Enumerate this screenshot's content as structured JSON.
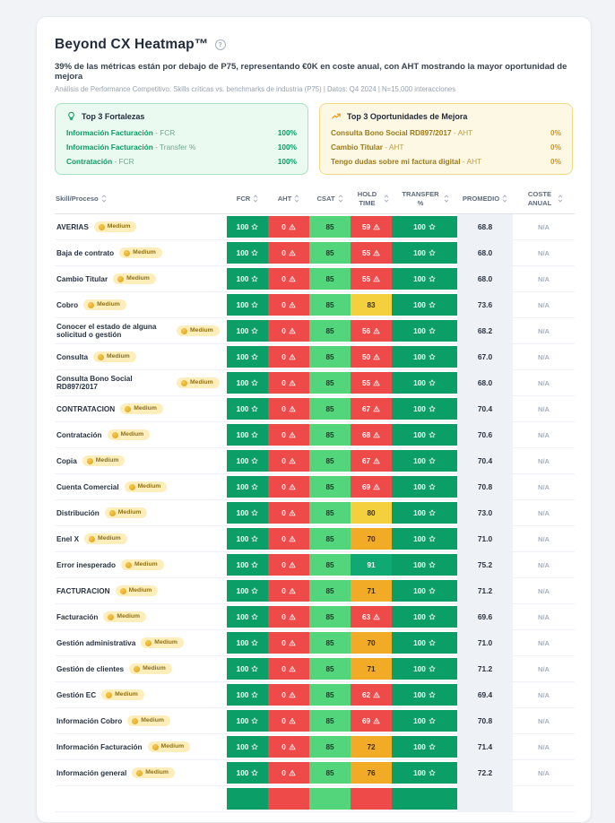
{
  "header": {
    "title": "Beyond CX Heatmap™",
    "subtitle": "39% de las métricas están por debajo de P75, representando €0K en coste anual, con AHT mostrando la mayor oportunidad de mejora",
    "meta": "Análisis de Performance Competitivo: Skills críticas vs. benchmarks de industria (P75) | Datos: Q4 2024 | N=15,000 interacciones",
    "help_glyph": "?"
  },
  "panels": {
    "strengths": {
      "title": "Top 3 Fortalezas",
      "items": [
        {
          "label": "Información Facturación",
          "metric": "FCR",
          "value": "100%"
        },
        {
          "label": "Información Facturación",
          "metric": "Transfer %",
          "value": "100%"
        },
        {
          "label": "Contratación",
          "metric": "FCR",
          "value": "100%"
        }
      ]
    },
    "opportunities": {
      "title": "Top 3 Oportunidades de Mejora",
      "items": [
        {
          "label": "Consulta Bono Social RD897/2017",
          "metric": "AHT",
          "value": "0%"
        },
        {
          "label": "Cambio Titular",
          "metric": "AHT",
          "value": "0%"
        },
        {
          "label": "Tengo dudas sobre mi factura digital",
          "metric": "AHT",
          "value": "0%"
        }
      ]
    }
  },
  "table": {
    "columns": [
      "Skill/Proceso",
      "FCR",
      "AHT",
      "CSAT",
      "HOLD TIME",
      "TRANSFER %",
      "PROMEDIO",
      "COSTE ANUAL"
    ],
    "rows": [
      {
        "skill": "AVERIAS",
        "badge": "Medium",
        "fcr": "100",
        "aht": "0",
        "csat": "85",
        "hold": "59",
        "hold_level": "bad",
        "transfer": "100",
        "promedio": "68.8",
        "coste": "N/A"
      },
      {
        "skill": "Baja de contrato",
        "badge": "Medium",
        "fcr": "100",
        "aht": "0",
        "csat": "85",
        "hold": "55",
        "hold_level": "bad",
        "transfer": "100",
        "promedio": "68.0",
        "coste": "N/A"
      },
      {
        "skill": "Cambio Titular",
        "badge": "Medium",
        "fcr": "100",
        "aht": "0",
        "csat": "85",
        "hold": "55",
        "hold_level": "bad",
        "transfer": "100",
        "promedio": "68.0",
        "coste": "N/A"
      },
      {
        "skill": "Cobro",
        "badge": "Medium",
        "fcr": "100",
        "aht": "0",
        "csat": "85",
        "hold": "83",
        "hold_level": "yellow",
        "transfer": "100",
        "promedio": "73.6",
        "coste": "N/A"
      },
      {
        "skill": "Conocer el estado de alguna solicitud o gestión",
        "badge": "Medium",
        "fcr": "100",
        "aht": "0",
        "csat": "85",
        "hold": "56",
        "hold_level": "bad",
        "transfer": "100",
        "promedio": "68.2",
        "coste": "N/A"
      },
      {
        "skill": "Consulta",
        "badge": "Medium",
        "fcr": "100",
        "aht": "0",
        "csat": "85",
        "hold": "50",
        "hold_level": "bad",
        "transfer": "100",
        "promedio": "67.0",
        "coste": "N/A"
      },
      {
        "skill": "Consulta Bono Social RD897/2017",
        "badge": "Medium",
        "fcr": "100",
        "aht": "0",
        "csat": "85",
        "hold": "55",
        "hold_level": "bad",
        "transfer": "100",
        "promedio": "68.0",
        "coste": "N/A"
      },
      {
        "skill": "CONTRATACION",
        "badge": "Medium",
        "fcr": "100",
        "aht": "0",
        "csat": "85",
        "hold": "67",
        "hold_level": "bad",
        "transfer": "100",
        "promedio": "70.4",
        "coste": "N/A"
      },
      {
        "skill": "Contratación",
        "badge": "Medium",
        "fcr": "100",
        "aht": "0",
        "csat": "85",
        "hold": "68",
        "hold_level": "bad",
        "transfer": "100",
        "promedio": "70.6",
        "coste": "N/A"
      },
      {
        "skill": "Copia",
        "badge": "Medium",
        "fcr": "100",
        "aht": "0",
        "csat": "85",
        "hold": "67",
        "hold_level": "bad",
        "transfer": "100",
        "promedio": "70.4",
        "coste": "N/A"
      },
      {
        "skill": "Cuenta Comercial",
        "badge": "Medium",
        "fcr": "100",
        "aht": "0",
        "csat": "85",
        "hold": "69",
        "hold_level": "bad",
        "transfer": "100",
        "promedio": "70.8",
        "coste": "N/A"
      },
      {
        "skill": "Distribución",
        "badge": "Medium",
        "fcr": "100",
        "aht": "0",
        "csat": "85",
        "hold": "80",
        "hold_level": "yellow",
        "transfer": "100",
        "promedio": "73.0",
        "coste": "N/A"
      },
      {
        "skill": "Enel X",
        "badge": "Medium",
        "fcr": "100",
        "aht": "0",
        "csat": "85",
        "hold": "70",
        "hold_level": "amber",
        "transfer": "100",
        "promedio": "71.0",
        "coste": "N/A"
      },
      {
        "skill": "Error inesperado",
        "badge": "Medium",
        "fcr": "100",
        "aht": "0",
        "csat": "85",
        "hold": "91",
        "hold_level": "goodhold",
        "transfer": "100",
        "promedio": "75.2",
        "coste": "N/A"
      },
      {
        "skill": "FACTURACION",
        "badge": "Medium",
        "fcr": "100",
        "aht": "0",
        "csat": "85",
        "hold": "71",
        "hold_level": "amber",
        "transfer": "100",
        "promedio": "71.2",
        "coste": "N/A"
      },
      {
        "skill": "Facturación",
        "badge": "Medium",
        "fcr": "100",
        "aht": "0",
        "csat": "85",
        "hold": "63",
        "hold_level": "bad",
        "transfer": "100",
        "promedio": "69.6",
        "coste": "N/A"
      },
      {
        "skill": "Gestión administrativa",
        "badge": "Medium",
        "fcr": "100",
        "aht": "0",
        "csat": "85",
        "hold": "70",
        "hold_level": "amber",
        "transfer": "100",
        "promedio": "71.0",
        "coste": "N/A"
      },
      {
        "skill": "Gestión de clientes",
        "badge": "Medium",
        "fcr": "100",
        "aht": "0",
        "csat": "85",
        "hold": "71",
        "hold_level": "amber",
        "transfer": "100",
        "promedio": "71.2",
        "coste": "N/A"
      },
      {
        "skill": "Gestión EC",
        "badge": "Medium",
        "fcr": "100",
        "aht": "0",
        "csat": "85",
        "hold": "62",
        "hold_level": "bad",
        "transfer": "100",
        "promedio": "69.4",
        "coste": "N/A"
      },
      {
        "skill": "Información Cobro",
        "badge": "Medium",
        "fcr": "100",
        "aht": "0",
        "csat": "85",
        "hold": "69",
        "hold_level": "bad",
        "transfer": "100",
        "promedio": "70.8",
        "coste": "N/A"
      },
      {
        "skill": "Información Facturación",
        "badge": "Medium",
        "fcr": "100",
        "aht": "0",
        "csat": "85",
        "hold": "72",
        "hold_level": "amber",
        "transfer": "100",
        "promedio": "71.4",
        "coste": "N/A"
      },
      {
        "skill": "Información general",
        "badge": "Medium",
        "fcr": "100",
        "aht": "0",
        "csat": "85",
        "hold": "76",
        "hold_level": "amber",
        "transfer": "100",
        "promedio": "72.2",
        "coste": "N/A"
      },
      {
        "skill": "",
        "badge": "",
        "fcr": "",
        "aht": "",
        "csat": "",
        "hold": "",
        "hold_level": "bad",
        "transfer": "",
        "promedio": "",
        "coste": "",
        "partial": true
      }
    ]
  },
  "colors": {
    "good_green": "#0b9e66",
    "bad_red": "#ee4a4a",
    "ok_light_green": "#53d57c",
    "warn_yellow": "#f4d03e",
    "warn_amber": "#f2ab27",
    "hold_good_green": "#10a873",
    "panel_green_bg": "#eafaf1",
    "panel_yellow_bg": "#fdf8e3",
    "badge_bg": "#fdeebc",
    "promedio_bg": "#eef1f5"
  }
}
